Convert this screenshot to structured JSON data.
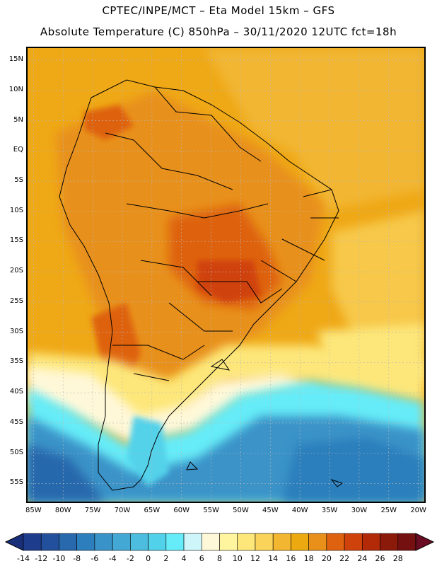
{
  "header": {
    "line1": "CPTEC/INPE/MCT –  Eta Model 15km – GFS",
    "line2": "Absolute Temperature (C) 850hPa – 30/11/2020 12UTC fct=18h"
  },
  "lat_labels": [
    "15N",
    "10N",
    "5N",
    "EQ",
    "5S",
    "10S",
    "15S",
    "20S",
    "25S",
    "30S",
    "35S",
    "40S",
    "45S",
    "50S",
    "55S"
  ],
  "lon_labels": [
    "85W",
    "80W",
    "75W",
    "70W",
    "65W",
    "60W",
    "55W",
    "50W",
    "45W",
    "40W",
    "35W",
    "30W",
    "25W",
    "20W"
  ],
  "colorbar": {
    "ticks": [
      "-14",
      "-12",
      "-10",
      "-8",
      "-6",
      "-4",
      "-2",
      "0",
      "2",
      "4",
      "6",
      "8",
      "10",
      "12",
      "14",
      "16",
      "18",
      "20",
      "22",
      "24",
      "26",
      "28"
    ],
    "colors": [
      "#1e3c8c",
      "#23509c",
      "#2868ac",
      "#2c7fbc",
      "#3a93c8",
      "#44a8d4",
      "#4cbcdf",
      "#52d2ea",
      "#66ecf8",
      "#cef6fa",
      "#fff8d8",
      "#fff59e",
      "#fde77a",
      "#f9d35a",
      "#f2b631",
      "#ecaa10",
      "#e8901a",
      "#de6210",
      "#d0420c",
      "#b22a08",
      "#8c1a0a",
      "#741010"
    ],
    "under_color": "#1a2f7a",
    "over_color": "#6a0c24"
  },
  "map": {
    "background_color": "#efa816",
    "graticule_color": "#b8b8b8",
    "coast_color": "#000000",
    "lat_range": [
      -58,
      17
    ],
    "lon_range": [
      -86,
      -19
    ]
  }
}
